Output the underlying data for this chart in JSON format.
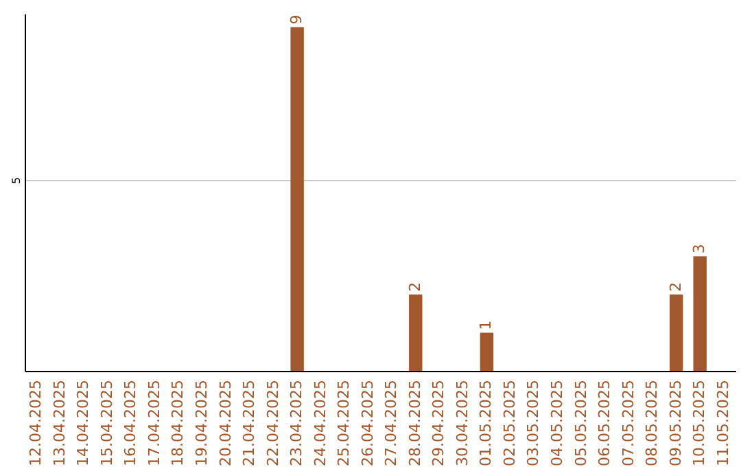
{
  "chart_data": {
    "type": "bar",
    "categories": [
      "12.04.2025",
      "13.04.2025",
      "14.04.2025",
      "15.04.2025",
      "16.04.2025",
      "17.04.2025",
      "18.04.2025",
      "19.04.2025",
      "20.04.2025",
      "21.04.2025",
      "22.04.2025",
      "23.04.2025",
      "24.04.2025",
      "25.04.2025",
      "26.04.2025",
      "27.04.2025",
      "28.04.2025",
      "29.04.2025",
      "30.04.2025",
      "01.05.2025",
      "02.05.2025",
      "03.05.2025",
      "04.05.2025",
      "05.05.2025",
      "06.05.2025",
      "07.05.2025",
      "08.05.2025",
      "09.05.2025",
      "10.05.2025",
      "11.05.2025"
    ],
    "values": [
      0,
      0,
      0,
      0,
      0,
      0,
      0,
      0,
      0,
      0,
      0,
      9,
      0,
      0,
      0,
      0,
      2,
      0,
      0,
      1,
      0,
      0,
      0,
      0,
      0,
      0,
      0,
      2,
      3,
      0
    ],
    "value_labels": [
      null,
      null,
      null,
      null,
      null,
      null,
      null,
      null,
      null,
      null,
      null,
      "9",
      null,
      null,
      null,
      null,
      "2",
      null,
      null,
      "1",
      null,
      null,
      null,
      null,
      null,
      null,
      null,
      "2",
      "3",
      null
    ],
    "color": "#a0582c",
    "ylim": [
      0,
      9.35
    ],
    "yticks": [
      5
    ],
    "grid": "y"
  }
}
